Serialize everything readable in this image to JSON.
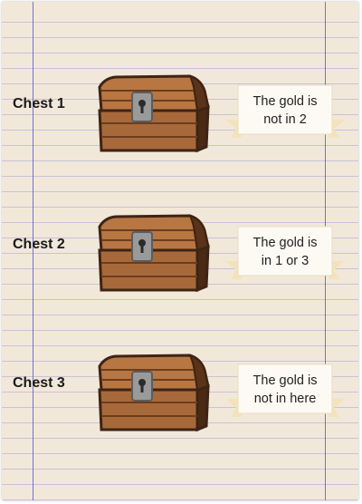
{
  "chests": [
    {
      "label": "Chest 1",
      "note_line1": "The gold is",
      "note_line2": "not in 2"
    },
    {
      "label": "Chest 2",
      "note_line1": "The gold is",
      "note_line2": "in 1 or 3"
    },
    {
      "label": "Chest 3",
      "note_line1": "The gold is",
      "note_line2": "not in here"
    }
  ],
  "colors": {
    "paper": "#f2e8da",
    "rule_line": "#c9c2d8",
    "margin_line": "#5a5fd0",
    "chest_wood": "#a8693a",
    "chest_dark": "#3d2414",
    "lock_metal": "#9a9a9a",
    "ribbon": "#f4e3b8"
  },
  "icons": [
    "treasure-chest-icon",
    "keyhole-lock-icon",
    "ribbon-banner-icon"
  ]
}
